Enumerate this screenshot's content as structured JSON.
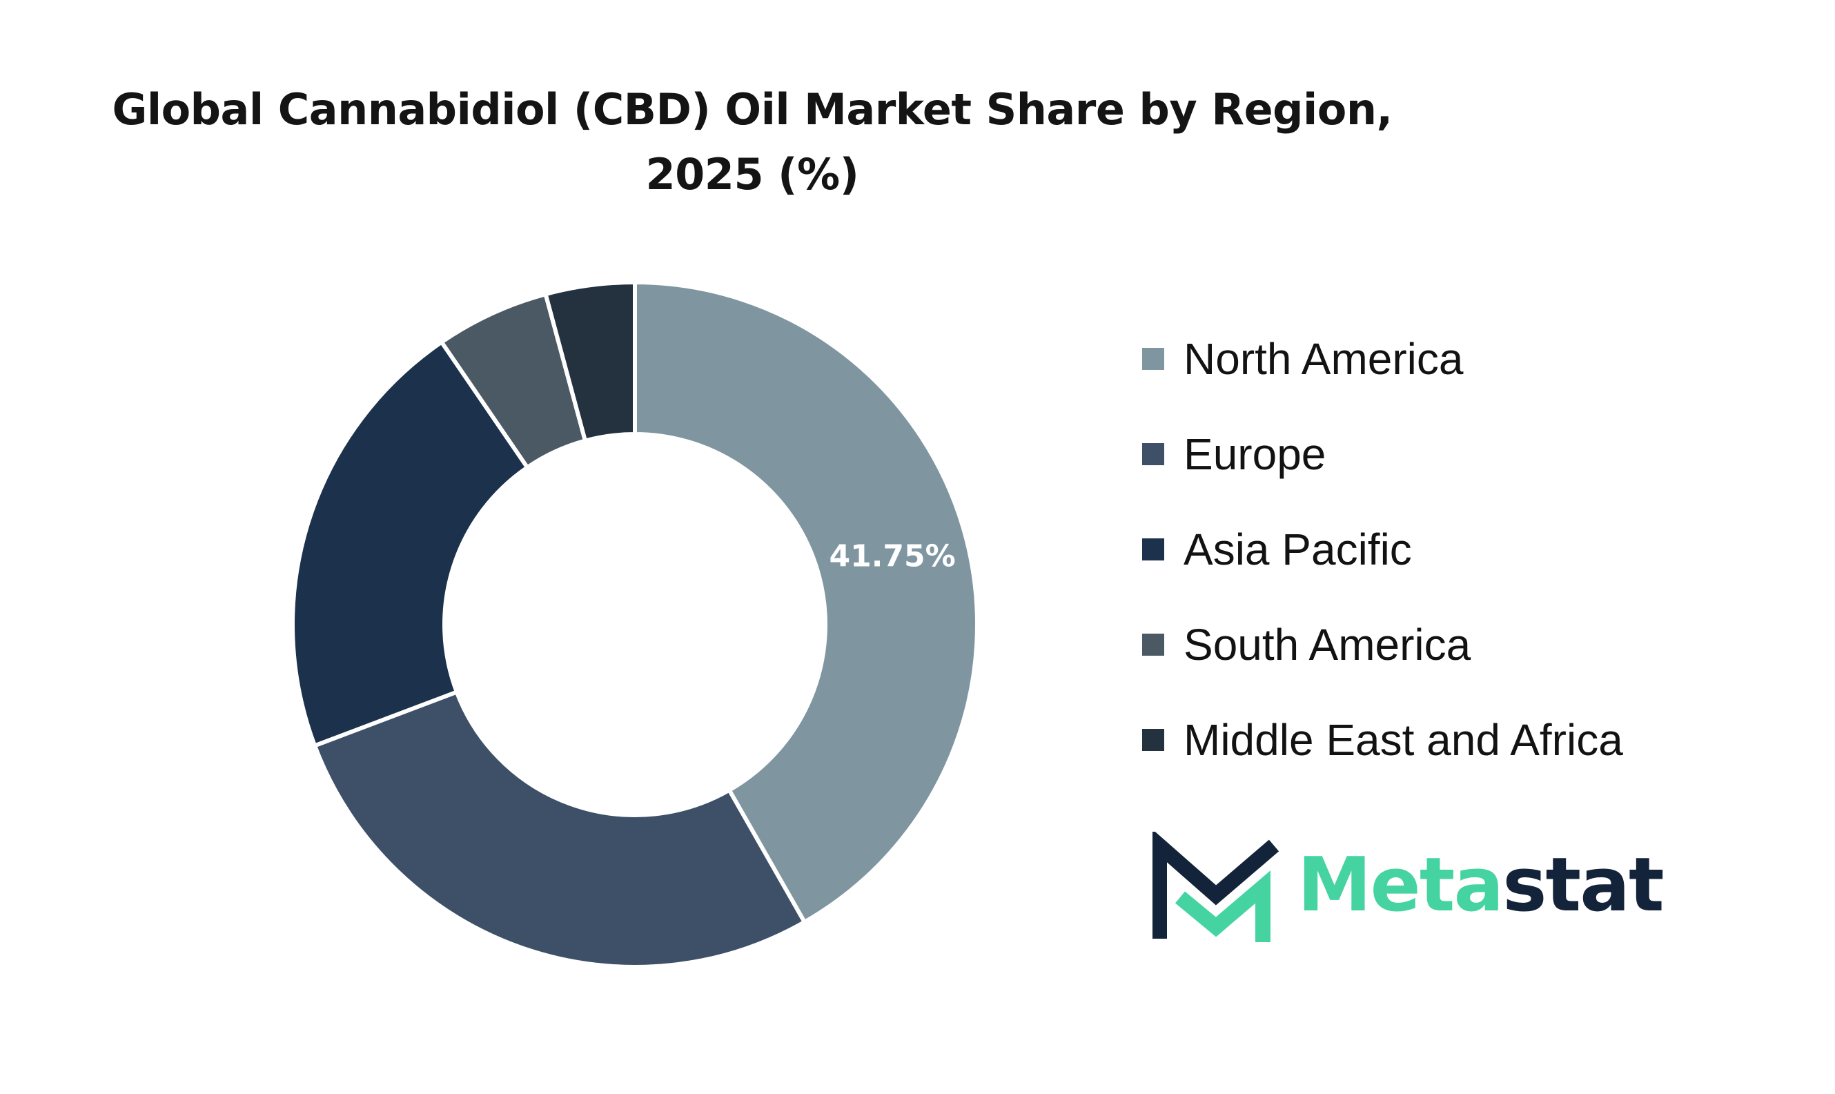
{
  "chart_data": {
    "type": "pie",
    "title_lines": [
      "Global Cannabidiol (CBD) Oil Market Share by Region,",
      "2025 (%)"
    ],
    "categories": [
      "North America",
      "Europe",
      "Asia Pacific",
      "South America",
      "Middle East and Africa"
    ],
    "values": [
      41.75,
      27.5,
      21.2,
      5.35,
      4.2
    ],
    "data_labels": [
      "41.75%",
      "",
      "",
      "",
      ""
    ],
    "colors": [
      "#7f95a0",
      "#3d5068",
      "#1b314c",
      "#4a5964",
      "#24313f"
    ],
    "donut": true,
    "legend_position": "right"
  },
  "logo": {
    "part1": "Meta",
    "part2": "stat",
    "colors": {
      "dark": "#13243a",
      "accent": "#46d3a2"
    }
  }
}
